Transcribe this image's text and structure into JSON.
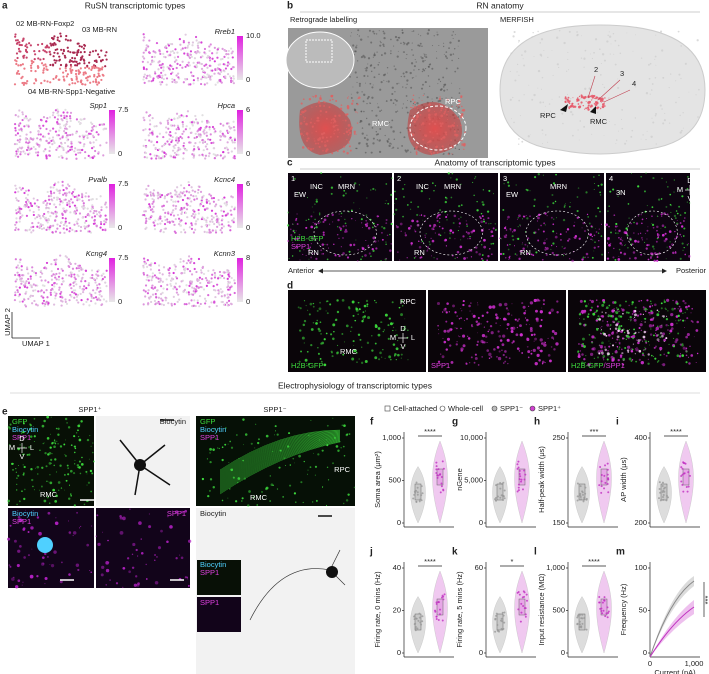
{
  "heading": "Electrophysiology of transcriptomic types",
  "panel_a": {
    "letter": "a",
    "title": "RuSN transcriptomic types",
    "clusters": [
      "02 MB-RN-Foxp2",
      "03 MB-RN",
      "04 MB-RN-Spp1-Negative"
    ],
    "genes": [
      {
        "name": "Rreb1",
        "max": "10.0",
        "min": "0"
      },
      {
        "name": "Spp1",
        "max": "7.5",
        "min": "0"
      },
      {
        "name": "Hpca",
        "max": "6",
        "min": "0"
      },
      {
        "name": "Pvalb",
        "max": "7.5",
        "min": "0"
      },
      {
        "name": "Kcnc4",
        "max": "6",
        "min": "0"
      },
      {
        "name": "Kcng4",
        "max": "7.5",
        "min": "0"
      },
      {
        "name": "Kcnn3",
        "max": "8",
        "min": "0"
      }
    ],
    "axes": [
      "UMAP 2",
      "UMAP 1"
    ]
  },
  "panel_b": {
    "letter": "b",
    "title": "RN anatomy",
    "left_title": "Retrograde labelling",
    "right_title": "MERFISH",
    "left_labels": [
      "RMC",
      "RPC"
    ],
    "right_labels": [
      "2",
      "3",
      "4",
      "RPC",
      "RMC"
    ]
  },
  "panel_c": {
    "letter": "c",
    "title": "Anatomy of transcriptomic types",
    "images": [
      {
        "number": "1",
        "labels": [
          "EW",
          "INC",
          "MRN",
          "RN"
        ]
      },
      {
        "number": "2",
        "labels": [
          "INC",
          "MRN",
          "RN"
        ]
      },
      {
        "number": "3",
        "labels": [
          "EW",
          "MRN",
          "RN"
        ]
      },
      {
        "number": "4",
        "labels": [
          "3N"
        ]
      }
    ],
    "channels": [
      "H2B-GFP",
      "SPP1"
    ],
    "compass": [
      "D",
      "M",
      "L",
      "V"
    ],
    "axis": [
      "Anterior",
      "Posterior"
    ]
  },
  "panel_d": {
    "letter": "d",
    "labels": [
      "RPC",
      "RMC"
    ],
    "channels": [
      "H2B-GFP",
      "SPP1",
      "H2B-GFP",
      "/SPP1"
    ],
    "compass": [
      "D",
      "M",
      "L",
      "V"
    ]
  },
  "panel_e": {
    "letter": "e",
    "groups": [
      "SPP1⁺",
      "SPP1⁻"
    ],
    "stains": [
      "GFP",
      "Biocytin",
      "SPP1"
    ],
    "compass": [
      "D",
      "M",
      "L",
      "V"
    ],
    "regions": [
      "RMC",
      "RPC"
    ]
  },
  "legend": [
    "Cell-attached",
    "Whole-cell",
    "SPP1⁻",
    "SPP1⁺"
  ],
  "plots": [
    {
      "letter": "f",
      "ylabel": "Soma area (μm²)",
      "yticks": [
        "1,000",
        "500",
        "0"
      ],
      "sig": "****"
    },
    {
      "letter": "g",
      "ylabel": "nGene",
      "yticks": [
        "10,000",
        "5,000",
        "0"
      ],
      "sig": ""
    },
    {
      "letter": "h",
      "ylabel": "Half-peak width (μs)",
      "yticks": [
        "250",
        "150"
      ],
      "sig": "***"
    },
    {
      "letter": "i",
      "ylabel": "AP width (μs)",
      "yticks": [
        "400",
        "200"
      ],
      "sig": "****"
    },
    {
      "letter": "j",
      "ylabel": "Firing rate, 0 mins (Hz)",
      "yticks": [
        "40",
        "20",
        "0"
      ],
      "sig": "****"
    },
    {
      "letter": "k",
      "ylabel": "Firing rate, 5 mins (Hz)",
      "yticks": [
        "60",
        "0"
      ],
      "sig": "*"
    },
    {
      "letter": "l",
      "ylabel": "Input resistance (MΩ)",
      "yticks": [
        "1,000",
        "500",
        "0"
      ],
      "sig": "****"
    },
    {
      "letter": "m",
      "ylabel": "Frequency (Hz)",
      "yticks": [
        "100",
        "50",
        "0"
      ],
      "sig": "***",
      "xlabel": "Current (pA)",
      "xticks": [
        "0",
        "1,000"
      ]
    }
  ]
}
